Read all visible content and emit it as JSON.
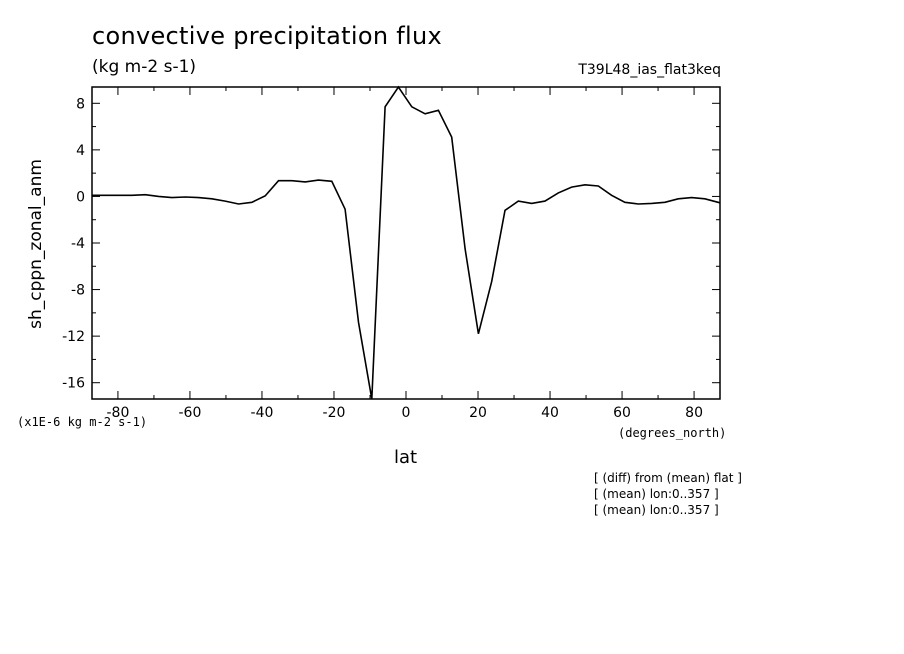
{
  "header": {
    "title": "convective precipitation flux",
    "units": "(kg m-2 s-1)",
    "experiment": "T39L48_ias_flat3keq"
  },
  "footer": {
    "scale_note": "(x1E-6 kg m-2 s-1)",
    "x_units": "(degrees_north)",
    "notes": [
      "[ (diff) from (mean) flat ]",
      "[ (mean) lon:0..357 ]",
      "[ (mean) lon:0..357 ]"
    ]
  },
  "chart_data": {
    "type": "line",
    "title": "convective precipitation flux",
    "xlabel": "lat",
    "ylabel": "sh_cppn_zonal_anm",
    "xlim": [
      -87.2,
      87.2
    ],
    "ylim": [
      -17.4,
      9.4
    ],
    "xticks": [
      -80,
      -60,
      -40,
      -20,
      0,
      20,
      40,
      60,
      80
    ],
    "xtick_labels": [
      "-80",
      "-60",
      "-40",
      "-20",
      "0",
      "20",
      "40",
      "60",
      "80"
    ],
    "yticks": [
      8,
      4,
      0,
      -4,
      -8,
      -12,
      -16
    ],
    "ytick_labels": [
      "8",
      "4",
      "0",
      "-4",
      "-8",
      "-12",
      "-16"
    ],
    "grid": false,
    "series": [
      {
        "x": [
          -87.2,
          -83.5,
          -79.8,
          -76.1,
          -72.4,
          -68.7,
          -65.0,
          -61.3,
          -57.6,
          -53.9,
          -50.2,
          -46.5,
          -42.8,
          -39.1,
          -35.4,
          -31.7,
          -28.0,
          -24.3,
          -20.6,
          -16.9,
          -13.2,
          -9.5,
          -5.8,
          -2.1,
          1.6,
          5.3,
          9.0,
          12.7,
          16.4,
          20.1,
          23.8,
          27.5,
          31.2,
          34.9,
          38.6,
          42.3,
          46.0,
          49.7,
          53.4,
          57.1,
          60.8,
          64.5,
          68.2,
          71.9,
          75.6,
          79.3,
          83.0,
          87.2
        ],
        "values": [
          0.1,
          0.1,
          0.1,
          0.1,
          0.15,
          0.0,
          -0.1,
          -0.05,
          -0.1,
          -0.2,
          -0.4,
          -0.65,
          -0.5,
          0.05,
          1.35,
          1.35,
          1.25,
          1.4,
          1.3,
          -1.1,
          -10.8,
          -17.4,
          7.7,
          9.4,
          7.7,
          7.1,
          7.4,
          5.1,
          -4.5,
          -11.8,
          -7.3,
          -1.2,
          -0.4,
          -0.6,
          -0.4,
          0.3,
          0.8,
          1.0,
          0.9,
          0.1,
          -0.5,
          -0.65,
          -0.6,
          -0.5,
          -0.2,
          -0.1,
          -0.2,
          -0.55
        ]
      }
    ]
  }
}
